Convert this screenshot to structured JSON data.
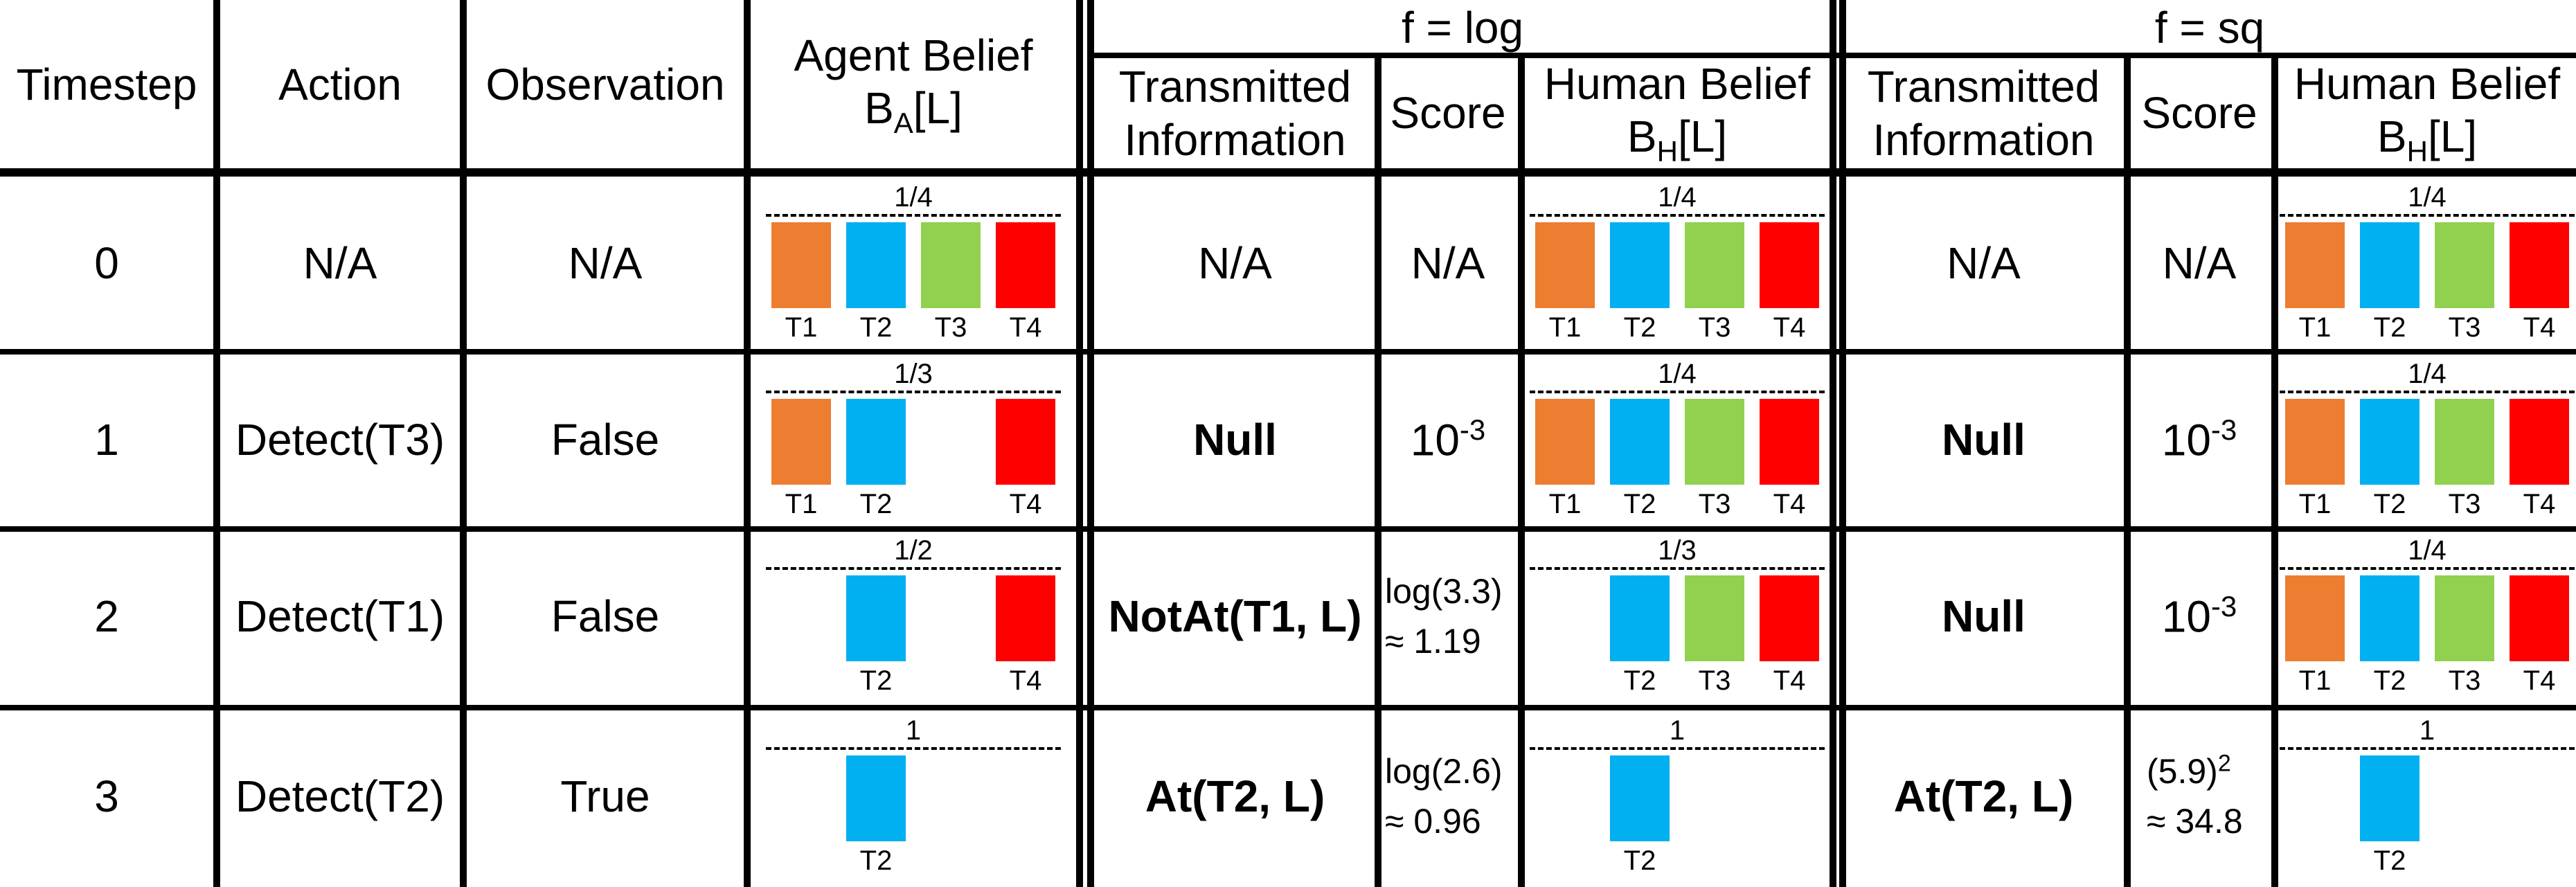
{
  "header": {
    "timestep": "Timestep",
    "action": "Action",
    "observation": "Observation",
    "agent_belief_line1": "Agent Belief",
    "agent_belief_var": "B",
    "agent_belief_sub": "A",
    "agent_belief_arg": "[L]",
    "group_log": "f = log",
    "group_sq": "f = sq",
    "transmitted_line1": "Transmitted",
    "transmitted_line2": "Information",
    "score": "Score",
    "human_belief_line1": "Human Belief",
    "human_belief_var": "B",
    "human_belief_sub": "H",
    "human_belief_arg": "[L]"
  },
  "colors": {
    "T1": "#ED7D31",
    "T2": "#00B0F0",
    "T3": "#92D050",
    "T4": "#FF0000"
  },
  "targets": [
    "T1",
    "T2",
    "T3",
    "T4"
  ],
  "rows": [
    {
      "timestep": "0",
      "action": "N/A",
      "observation": "N/A",
      "agent": {
        "label": "1/4",
        "value": 0.25,
        "targets": [
          "T1",
          "T2",
          "T3",
          "T4"
        ]
      },
      "log": {
        "info": "N/A",
        "info_bold": false,
        "score_line1": "N/A",
        "score_line2": "",
        "human": {
          "label": "1/4",
          "value": 0.25,
          "targets": [
            "T1",
            "T2",
            "T3",
            "T4"
          ]
        }
      },
      "sq": {
        "info": "N/A",
        "info_bold": false,
        "score_line1": "N/A",
        "score_line2": "",
        "human": {
          "label": "1/4",
          "value": 0.25,
          "targets": [
            "T1",
            "T2",
            "T3",
            "T4"
          ]
        }
      }
    },
    {
      "timestep": "1",
      "action": "Detect(T3)",
      "observation": "False",
      "agent": {
        "label": "1/3",
        "value": 0.3333,
        "targets": [
          "T1",
          "T2",
          "T4"
        ]
      },
      "log": {
        "info": "Null",
        "info_bold": true,
        "score_base": "10",
        "score_exp": "-3",
        "human": {
          "label": "1/4",
          "value": 0.25,
          "targets": [
            "T1",
            "T2",
            "T3",
            "T4"
          ]
        }
      },
      "sq": {
        "info": "Null",
        "info_bold": true,
        "score_base": "10",
        "score_exp": "-3",
        "human": {
          "label": "1/4",
          "value": 0.25,
          "targets": [
            "T1",
            "T2",
            "T3",
            "T4"
          ]
        }
      }
    },
    {
      "timestep": "2",
      "action": "Detect(T1)",
      "observation": "False",
      "agent": {
        "label": "1/2",
        "value": 0.5,
        "targets": [
          "T2",
          "T4"
        ]
      },
      "log": {
        "info": "NotAt(T1, L)",
        "info_bold": true,
        "score_line1": "log(3.3)",
        "score_line2": "≈ 1.19",
        "human": {
          "label": "1/3",
          "value": 0.3333,
          "targets": [
            "T2",
            "T3",
            "T4"
          ]
        }
      },
      "sq": {
        "info": "Null",
        "info_bold": true,
        "score_base": "10",
        "score_exp": "-3",
        "human": {
          "label": "1/4",
          "value": 0.25,
          "targets": [
            "T1",
            "T2",
            "T3",
            "T4"
          ]
        }
      }
    },
    {
      "timestep": "3",
      "action": "Detect(T2)",
      "observation": "True",
      "agent": {
        "label": "1",
        "value": 1,
        "targets": [
          "T2"
        ]
      },
      "log": {
        "info": "At(T2, L)",
        "info_bold": true,
        "score_line1": "log(2.6)",
        "score_line2": "≈ 0.96",
        "human": {
          "label": "1",
          "value": 1,
          "targets": [
            "T2"
          ]
        }
      },
      "sq": {
        "info": "At(T2, L)",
        "info_bold": true,
        "score_sq_base": "(5.9)",
        "score_sq_exp": "2",
        "score_line2": "≈ 34.8",
        "human": {
          "label": "1",
          "value": 1,
          "targets": [
            "T2"
          ]
        }
      }
    }
  ]
}
